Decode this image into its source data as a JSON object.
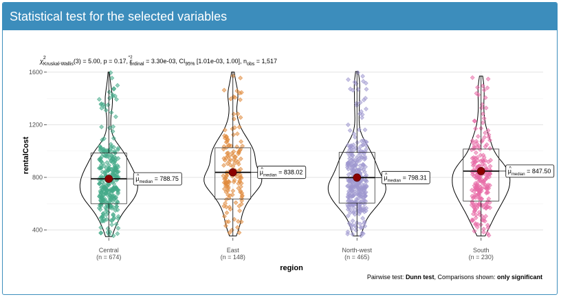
{
  "panel": {
    "title": "Statistical test for the selected variables"
  },
  "chart_data": {
    "type": "violin",
    "subtitle": {
      "chi": "χ",
      "chi_sup": "2",
      "chi_sub": "Kruskal-Wallis",
      "part1": "(3) = 5.00, p = 0.17, ",
      "eps": "ε",
      "eps_sup": "^2",
      "eps_sub": "ordinal",
      "part2": " = 3.30e-03, CI",
      "ci_sub": "95%",
      "part3": " [1.01e-03, 1.00], n",
      "n_sub": "obs",
      "part4": " = 1,517"
    },
    "xlabel": "region",
    "ylabel": "rentalCost",
    "ylim": [
      340,
      1610
    ],
    "yticks": [
      400,
      800,
      1200,
      1600
    ],
    "grid": true,
    "categories": [
      "Central",
      "East",
      "North-west",
      "South"
    ],
    "n_labels": [
      "(n = 674)",
      "(n = 148)",
      "(n = 465)",
      "(n = 230)"
    ],
    "colors": [
      "#44aa88",
      "#e08a3c",
      "#9f98cf",
      "#e76aa6"
    ],
    "median_color": "#8b0000",
    "series": [
      {
        "category": "Central",
        "n": 674,
        "min": 350,
        "q1": 600,
        "median": 788.75,
        "q3": 985,
        "max": 1600,
        "median_label": "788.75"
      },
      {
        "category": "East",
        "n": 148,
        "min": 355,
        "q1": 635,
        "median": 838.02,
        "q3": 1025,
        "max": 1600,
        "median_label": "838.02"
      },
      {
        "category": "North-west",
        "n": 465,
        "min": 355,
        "q1": 605,
        "median": 798.31,
        "q3": 990,
        "max": 1605,
        "median_label": "798.31"
      },
      {
        "category": "South",
        "n": 230,
        "min": 355,
        "q1": 620,
        "median": 847.5,
        "q3": 1015,
        "max": 1570,
        "median_label": "847.50"
      }
    ],
    "median_symbol": "μ",
    "median_hat": "^",
    "median_sub": "median",
    "caption": {
      "prefix": "Pairwise test: ",
      "test": "Dunn test",
      "middle": ", Comparisons shown: ",
      "shown": "only significant"
    }
  }
}
